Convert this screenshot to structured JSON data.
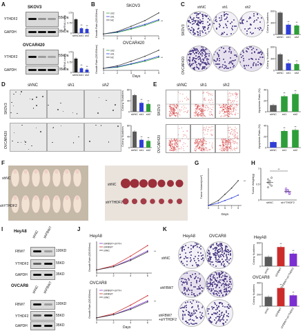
{
  "panels": {
    "A": "A",
    "B": "B",
    "C": "C",
    "D": "D",
    "E": "E",
    "F": "F",
    "G": "G",
    "H": "H",
    "I": "I",
    "J": "J",
    "K": "K"
  },
  "A": {
    "cell1": "SKOV3",
    "cell2": "OVCAR420",
    "rowlabels": [
      "YTHDF2",
      "GAPDH"
    ],
    "kda": [
      "55kDa",
      "35kDa"
    ],
    "lanes": [
      "shNC",
      "sh1",
      "sh2"
    ]
  },
  "B": {
    "title1": "SKOV3",
    "title2": "OVCAR420",
    "xlabel": "Days",
    "ylabel": "Growth Rate (OD450nm)",
    "legend": [
      "sh2",
      "sh1",
      "NC"
    ]
  },
  "C": {
    "cells": [
      "SKOV3",
      "OVCAR420"
    ],
    "lanes": [
      "shNC",
      "sh1",
      "sh2"
    ]
  },
  "D": {
    "cells": [
      "SKOV3",
      "OVCAR420"
    ],
    "lanes": [
      "shNC",
      "sh1",
      "sh2"
    ]
  },
  "E": {
    "cells": [
      "SKOV3",
      "OVCAR420"
    ],
    "lanes": [
      "shNC",
      "sh1",
      "sh2"
    ],
    "ylabel": "Apoptosis Ratio (%)"
  },
  "F": {
    "rows": [
      "shNC",
      "shYTHDF2"
    ]
  },
  "G": {
    "xlabel": "Days",
    "ylabel": "Tumor Volume(mm³)"
  },
  "H": {
    "ylabel": "Tumor Weight(g)",
    "cats": [
      "shNC",
      "shYTHDF2"
    ],
    "sig": "**"
  },
  "I": {
    "cell1": "HeyA8",
    "cell2": "OVCAR8",
    "rowlabels": [
      "FBW7",
      "YTHDF2",
      "GAPDH"
    ],
    "kda": [
      "100KD",
      "55KD",
      "35KD"
    ],
    "lanes": [
      "shNC",
      "shFBW7"
    ]
  },
  "J": {
    "title1": "HeyA8",
    "title2": "OVCAR8",
    "xlabel": "Days",
    "ylabel": "Growth Rate (OD450nm)",
    "legend": [
      "shFBW7+siYTH",
      "shFBW7",
      "shNC"
    ]
  },
  "K": {
    "cells": [
      "HeyA8",
      "OVCAR8"
    ],
    "rows": [
      "shNC",
      "shFBW7",
      "shFBW7\n+siYTHDF2"
    ],
    "barcats": [
      "shNC",
      "shFBW7",
      "shFBW7+siYTHDF2"
    ]
  },
  "colors": {
    "nc": "#3d3d3d",
    "sh1": "#2f3fd6",
    "sh2": "#2e9e3a",
    "purple": "#7a2fd0",
    "red": "#cc2b2b"
  },
  "chart_data": [
    {
      "panel": "A",
      "type": "bar",
      "categories": [
        "shNC",
        "sh1",
        "sh2"
      ],
      "values": [
        1.0,
        0.35,
        0.3
      ],
      "ylim": [
        0,
        1.5
      ],
      "cell": "SKOV3",
      "ylabel": "mRNA Level"
    },
    {
      "panel": "A",
      "type": "bar",
      "categories": [
        "shNC",
        "sh1",
        "sh2"
      ],
      "values": [
        1.0,
        0.3,
        0.2
      ],
      "ylim": [
        0,
        1.5
      ],
      "cell": "OVCAR420",
      "ylabel": "mRNA Level"
    },
    {
      "panel": "B",
      "type": "line",
      "title": "SKOV3",
      "x": [
        1,
        2,
        3,
        4,
        5
      ],
      "series": [
        {
          "name": "sh2",
          "values": [
            0.2,
            0.35,
            0.7,
            1.1,
            1.6
          ]
        },
        {
          "name": "sh1",
          "values": [
            0.2,
            0.4,
            0.8,
            1.2,
            1.7
          ]
        },
        {
          "name": "NC",
          "values": [
            0.2,
            0.45,
            1.0,
            1.6,
            2.4
          ]
        }
      ]
    },
    {
      "panel": "B",
      "type": "line",
      "title": "OVCAR420",
      "x": [
        1,
        2,
        3,
        4,
        5
      ],
      "series": [
        {
          "name": "sh2",
          "values": [
            0.2,
            0.3,
            0.6,
            0.9,
            1.3
          ]
        },
        {
          "name": "sh1",
          "values": [
            0.2,
            0.35,
            0.65,
            1.0,
            1.4
          ]
        },
        {
          "name": "NC",
          "values": [
            0.2,
            0.45,
            0.9,
            1.4,
            2.0
          ]
        }
      ]
    },
    {
      "panel": "C",
      "type": "bar",
      "cell": "SKOV3",
      "categories": [
        "shNC",
        "sh1",
        "sh2"
      ],
      "values": [
        560,
        250,
        230
      ],
      "ylim": [
        0,
        600
      ],
      "ylabel": "Colony Numbers"
    },
    {
      "panel": "C",
      "type": "bar",
      "cell": "OVCAR420",
      "categories": [
        "shNC",
        "sh1",
        "sh2"
      ],
      "values": [
        410,
        180,
        160
      ],
      "ylim": [
        0,
        600
      ],
      "ylabel": "Colony Numbers"
    },
    {
      "panel": "D",
      "type": "bar",
      "cell": "SKOV3",
      "categories": [
        "shNC",
        "sh1",
        "sh2"
      ],
      "values": [
        60,
        32,
        28
      ],
      "ylim": [
        0,
        80
      ],
      "ylabel": "Colony Numbers"
    },
    {
      "panel": "D",
      "type": "bar",
      "cell": "OVCAR420",
      "categories": [
        "shNC",
        "sh1",
        "sh2"
      ],
      "values": [
        58,
        28,
        24
      ],
      "ylim": [
        0,
        80
      ],
      "ylabel": "Colony Numbers"
    },
    {
      "panel": "E",
      "type": "bar",
      "cell": "SKOV3",
      "categories": [
        "shNC",
        "sh1",
        "sh2"
      ],
      "values": [
        12,
        28,
        32
      ],
      "ylim": [
        0,
        40
      ],
      "ylabel": "Apoptosis Ratio (%)"
    },
    {
      "panel": "E",
      "type": "bar",
      "cell": "OVCAR420",
      "categories": [
        "shNC",
        "sh1",
        "sh2"
      ],
      "values": [
        10,
        30,
        32
      ],
      "ylim": [
        0,
        40
      ],
      "ylabel": "Apoptosis Ratio (%)"
    },
    {
      "panel": "G",
      "type": "line",
      "x": [
        0,
        3,
        5,
        7,
        9
      ],
      "series": [
        {
          "name": "shNC",
          "values": [
            0,
            200,
            450,
            700,
            1000
          ]
        },
        {
          "name": "shYTHDF2",
          "values": [
            0,
            100,
            200,
            300,
            420
          ]
        }
      ],
      "ylim": [
        0,
        1500
      ],
      "xlabel": "Days",
      "ylabel": "Tumor Volume(mm³)"
    },
    {
      "panel": "H",
      "type": "scatter",
      "categories": [
        "shNC",
        "shYTHDF2"
      ],
      "series": [
        {
          "name": "shNC",
          "values": [
            0.55,
            0.6,
            0.45,
            0.65,
            0.5,
            0.7,
            0.4
          ]
        },
        {
          "name": "shYTHDF2",
          "values": [
            0.25,
            0.3,
            0.2,
            0.35,
            0.28,
            0.22,
            0.3
          ]
        }
      ],
      "ylim": [
        0,
        1.0
      ]
    },
    {
      "panel": "J",
      "type": "line",
      "title": "HeyA8",
      "x": [
        0,
        2,
        4,
        6
      ],
      "series": [
        {
          "name": "shFBW7+siYTH",
          "values": [
            0.3,
            0.6,
            1.3,
            2.1
          ]
        },
        {
          "name": "shFBW7",
          "values": [
            0.3,
            0.7,
            1.6,
            2.6
          ]
        },
        {
          "name": "shNC",
          "values": [
            0.3,
            0.6,
            1.2,
            2.0
          ]
        }
      ],
      "ylim": [
        0,
        3
      ]
    },
    {
      "panel": "J",
      "type": "line",
      "title": "OVCAR8",
      "x": [
        0,
        2,
        4,
        6
      ],
      "series": [
        {
          "name": "shFBW7+siYTH",
          "values": [
            0.2,
            0.5,
            1.1,
            1.8
          ]
        },
        {
          "name": "shFBW7",
          "values": [
            0.2,
            0.6,
            1.4,
            2.3
          ]
        },
        {
          "name": "shNC",
          "values": [
            0.2,
            0.5,
            1.0,
            1.7
          ]
        }
      ],
      "ylim": [
        0,
        3
      ]
    },
    {
      "panel": "K",
      "type": "bar",
      "cell": "HeyA8",
      "categories": [
        "shNC",
        "shFBW7",
        "shFBW7+siYTHDF2"
      ],
      "values": [
        240,
        490,
        320
      ],
      "ylim": [
        0,
        600
      ],
      "ylabel": "Colony Numbers"
    },
    {
      "panel": "K",
      "type": "bar",
      "cell": "OVCAR8",
      "categories": [
        "shNC",
        "shFBW7",
        "shFBW7+siYTHDF2"
      ],
      "values": [
        160,
        310,
        185
      ],
      "ylim": [
        0,
        400
      ],
      "ylabel": "Colony Numbers"
    }
  ]
}
